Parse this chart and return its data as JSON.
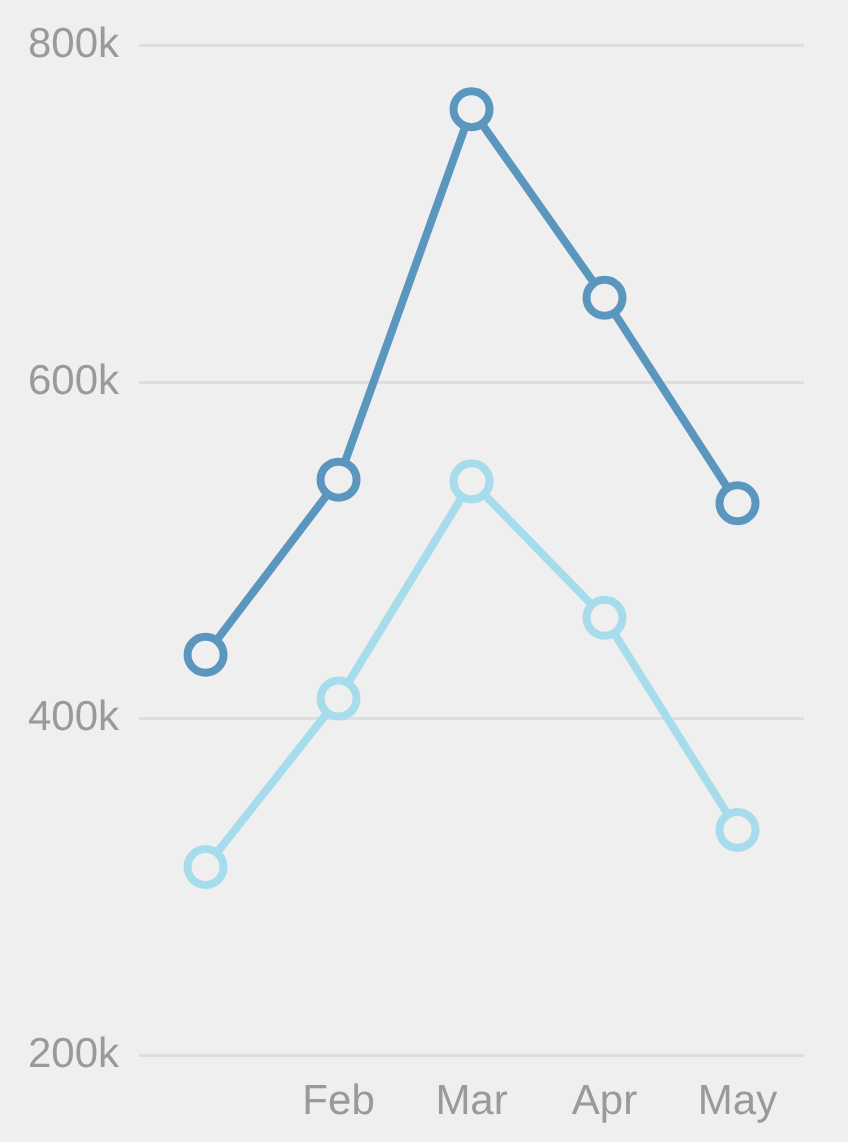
{
  "chart_data": {
    "type": "line",
    "categories": [
      null,
      "Feb",
      "Mar",
      "Apr",
      "May"
    ],
    "series": [
      {
        "color": "#5b96be",
        "values": [
          438000,
          542000,
          762000,
          650000,
          528000
        ]
      },
      {
        "color": "#a6dcec",
        "values": [
          312000,
          412000,
          541000,
          460000,
          334000
        ]
      }
    ],
    "ylim": [
      200000,
      800000
    ],
    "yticks": [
      {
        "value": 200000,
        "label": "200k"
      },
      {
        "value": 400000,
        "label": "400k"
      },
      {
        "value": 600000,
        "label": "600k"
      },
      {
        "value": 800000,
        "label": "800k"
      }
    ],
    "grid": "y",
    "legend": false,
    "marker": "circle",
    "line_style": "solid"
  }
}
